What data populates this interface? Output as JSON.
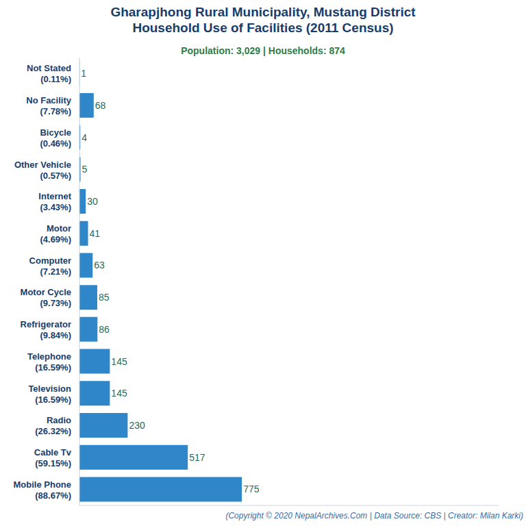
{
  "chart_data": {
    "type": "bar",
    "orientation": "horizontal",
    "title": [
      "Gharapjhong Rural Municipality, Mustang District",
      "Household Use of Facilities (2011 Census)"
    ],
    "subtitle": "Population: 3,029 | Households: 874",
    "caption": "(Copyright © 2020 NepalArchives.Com | Data Source: CBS | Creator: Milan Karki)",
    "categories": [
      "Not Stated",
      "No Facility",
      "Bicycle",
      "Other Vehicle",
      "Internet",
      "Motor",
      "Computer",
      "Motor Cycle",
      "Refrigerator",
      "Telephone",
      "Television",
      "Radio",
      "Cable Tv",
      "Mobile Phone"
    ],
    "share_labels": [
      "(0.11%)",
      "(7.78%)",
      "(0.46%)",
      "(0.57%)",
      "(3.43%)",
      "(4.69%)",
      "(7.21%)",
      "(9.73%)",
      "(9.84%)",
      "(16.59%)",
      "(16.59%)",
      "(26.32%)",
      "(59.15%)",
      "(88.67%)"
    ],
    "values": [
      1,
      68,
      4,
      5,
      30,
      41,
      63,
      85,
      86,
      145,
      145,
      230,
      517,
      775
    ],
    "color": "#2f86c9",
    "xlim": [
      0,
      2000
    ],
    "tick_labels": false,
    "grid": false,
    "data_labels": true
  }
}
